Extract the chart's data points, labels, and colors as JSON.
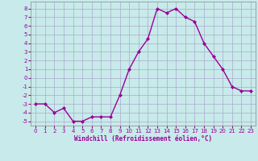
{
  "x": [
    0,
    1,
    2,
    3,
    4,
    5,
    6,
    7,
    8,
    9,
    10,
    11,
    12,
    13,
    14,
    15,
    16,
    17,
    18,
    19,
    20,
    21,
    22,
    23
  ],
  "y": [
    -3,
    -3,
    -4,
    -3.5,
    -5,
    -5,
    -4.5,
    -4.5,
    -4.5,
    -2,
    1,
    3,
    4.5,
    8,
    7.5,
    8,
    7,
    6.5,
    4,
    2.5,
    1,
    -1,
    -1.5,
    -1.5
  ],
  "line_color": "#990099",
  "marker": "D",
  "marker_size": 2,
  "bg_color": "#c8eaea",
  "grid_color": "#aaaacc",
  "xlabel": "Windchill (Refroidissement éolien,°C)",
  "ylim": [
    -5.5,
    8.8
  ],
  "xlim": [
    -0.5,
    23.5
  ],
  "yticks": [
    -5,
    -4,
    -3,
    -2,
    -1,
    0,
    1,
    2,
    3,
    4,
    5,
    6,
    7,
    8
  ],
  "xticks": [
    0,
    1,
    2,
    3,
    4,
    5,
    6,
    7,
    8,
    9,
    10,
    11,
    12,
    13,
    14,
    15,
    16,
    17,
    18,
    19,
    20,
    21,
    22,
    23
  ],
  "tick_fontsize": 5,
  "xlabel_fontsize": 5.5,
  "line_width": 1.0,
  "spine_color": "#888888"
}
